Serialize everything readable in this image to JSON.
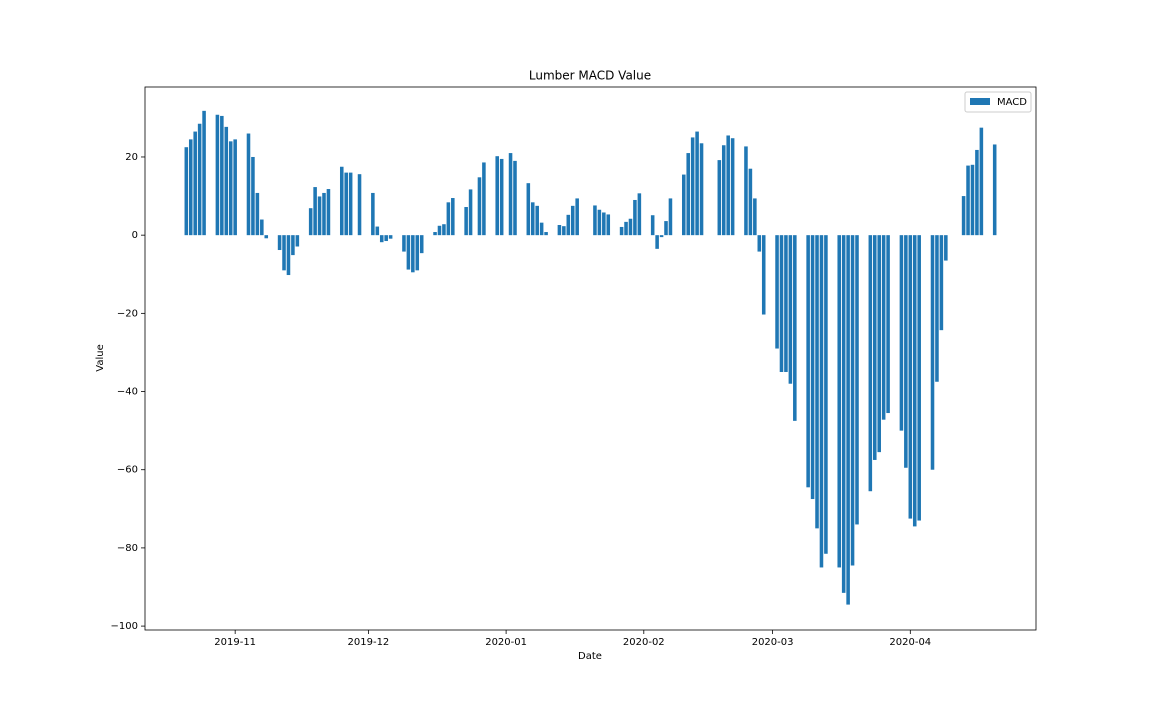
{
  "chart_data": {
    "type": "bar",
    "title": "Lumber MACD Value",
    "x_label": "Date",
    "y_label": "Value",
    "legend": "upper right",
    "grid": false,
    "categories": [
      null,
      null,
      null,
      null,
      null,
      null,
      null,
      null,
      null,
      null,
      null,
      "2019-11",
      null,
      null,
      null,
      null,
      null,
      null,
      null,
      null,
      null,
      null,
      null,
      null,
      null,
      null,
      null,
      null,
      null,
      null,
      null,
      null,
      null,
      null,
      null,
      null,
      null,
      null,
      null,
      null,
      null,
      "2019-12",
      null,
      null,
      null,
      null,
      null,
      null,
      null,
      null,
      null,
      null,
      null,
      null,
      null,
      null,
      null,
      null,
      null,
      null,
      null,
      null,
      null,
      null,
      null,
      null,
      null,
      null,
      null,
      null,
      null,
      null,
      "2020-01",
      null,
      null,
      null,
      null,
      null,
      null,
      null,
      null,
      null,
      null,
      null,
      null,
      null,
      null,
      null,
      null,
      null,
      null,
      null,
      null,
      null,
      null,
      null,
      null,
      null,
      null,
      null,
      null,
      null,
      null,
      "2020-02",
      null,
      null,
      null,
      null,
      null,
      null,
      null,
      null,
      null,
      null,
      null,
      null,
      null,
      null,
      null,
      null,
      null,
      null,
      null,
      null,
      null,
      null,
      null,
      null,
      null,
      null,
      null,
      null,
      "2020-03",
      null,
      null,
      null,
      null,
      null,
      null,
      null,
      null,
      null,
      null,
      null,
      null,
      null,
      null,
      null,
      null,
      null,
      null,
      null,
      null,
      null,
      null,
      null,
      null,
      null,
      null,
      null,
      null,
      null,
      null,
      "2020-04",
      null,
      null,
      null,
      null,
      null,
      null,
      null,
      null,
      null,
      null,
      null,
      null,
      null,
      null,
      null,
      null,
      null,
      null,
      null
    ],
    "series": [
      {
        "name": "MACD",
        "color": "#1f77b4",
        "values": [
          22.5,
          24.5,
          26.5,
          28.5,
          31.8,
          null,
          null,
          30.8,
          30.5,
          27.7,
          24,
          24.5,
          null,
          null,
          26,
          20,
          10.8,
          4,
          -0.8,
          null,
          null,
          -3.8,
          -9,
          -10.2,
          -5.1,
          -2.9,
          null,
          null,
          6.9,
          12.3,
          9.9,
          10.8,
          11.8,
          null,
          null,
          17.5,
          16,
          16,
          null,
          15.6,
          null,
          null,
          10.8,
          2.2,
          -1.8,
          -1.5,
          -0.9,
          null,
          null,
          -4.2,
          -8.8,
          -9.5,
          -9,
          -4.6,
          null,
          null,
          0.8,
          2.4,
          2.8,
          8.4,
          9.5,
          null,
          null,
          7.2,
          11.7,
          null,
          14.8,
          18.6,
          null,
          null,
          20.2,
          19.5,
          null,
          21,
          19,
          null,
          null,
          13.3,
          8.4,
          7.5,
          3.2,
          0.8,
          null,
          null,
          2.6,
          2.3,
          5.2,
          7.5,
          9.4,
          null,
          null,
          null,
          7.6,
          6.5,
          5.8,
          5.3,
          null,
          null,
          2.1,
          3.4,
          4.2,
          9,
          10.7,
          null,
          null,
          5.1,
          -3.5,
          -0.5,
          3.6,
          9.4,
          null,
          null,
          15.5,
          21,
          25,
          26.5,
          23.5,
          null,
          null,
          null,
          19.2,
          23,
          25.5,
          24.8,
          null,
          null,
          22.7,
          17,
          9.4,
          -4.2,
          -20.3,
          null,
          null,
          -29,
          -35,
          -35,
          -38,
          -47.5,
          null,
          null,
          -64.5,
          -67.5,
          -75,
          -85,
          -81.5,
          null,
          null,
          -85,
          -91.5,
          -94.5,
          -84.5,
          -74,
          null,
          null,
          -65.5,
          -57.5,
          -55.5,
          -47.2,
          -45.5,
          null,
          null,
          -50,
          -59.5,
          -72.5,
          -74.5,
          -73,
          null,
          null,
          -60,
          -37.5,
          -24.3,
          -6.5,
          null,
          null,
          null,
          10,
          17.8,
          18,
          21.8,
          27.5,
          null,
          null,
          23.2
        ]
      }
    ],
    "ylim": [
      -101,
      37.9
    ],
    "yticks": [
      {
        "value": -100,
        "label": "−100"
      },
      {
        "value": -80,
        "label": "−80"
      },
      {
        "value": -60,
        "label": "−60"
      },
      {
        "value": -40,
        "label": "−40"
      },
      {
        "value": -20,
        "label": "−20"
      },
      0,
      20
    ]
  }
}
